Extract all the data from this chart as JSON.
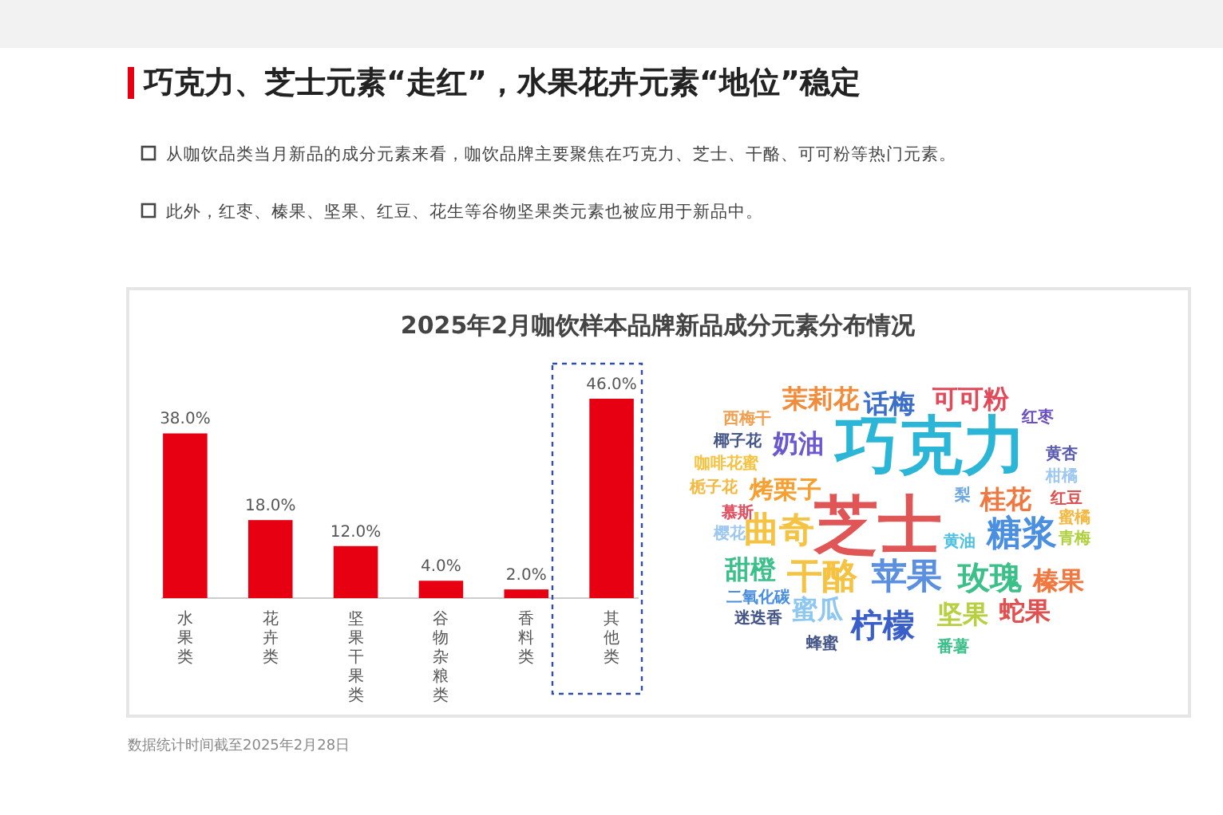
{
  "chart_data": [
    {
      "type": "bar",
      "title": "巧克力、芝士元素“走红”，水果花卉元素“地位”稳定",
      "subtitle": "2025年2月咖饮样本品牌新品成分元素分布情况",
      "categories": [
        "水果类",
        "花卉类",
        "坚果干果类",
        "谷物杂粮类",
        "香料类",
        "其他类"
      ],
      "values": [
        38,
        18,
        12,
        4,
        2,
        46
      ],
      "value_labels": [
        "38.0%",
        "18.0%",
        "12.0%",
        "4.0%",
        "2.0%",
        "46.0%"
      ],
      "color": "#e60012",
      "annotations": [
        "从咖饮品类当月新品的成分元素来看，咖饮品牌主要聚焦在巧克力、芝士、干酪、可可粉等热门元素。",
        "此外，红枣、榛果、坚果、红豆、花生等谷物坚果类元素也被应用于新品中。",
        "数据统计时间截至2025年2月28日"
      ]
    },
    {
      "type": "other",
      "annotations": [
        "巧克力",
        "芝士",
        "茉莉花",
        "话梅",
        "可可粉",
        "西梅干",
        "红枣",
        "椰子花",
        "奶油",
        "咖啡花蜜",
        "黄杏",
        "栀子花",
        "烤栗子",
        "桂花",
        "柑橘",
        "红豆",
        "梨",
        "慕斯",
        "曲奇",
        "黄油",
        "蜜橘",
        "樱花",
        "糖浆",
        "青梅",
        "甜橙",
        "干酪",
        "苹果",
        "玫瑰",
        "榛果",
        "二氧化碳",
        "迷迭香",
        "蜜瓜",
        "柠檬",
        "坚果",
        "蛇果",
        "蜂蜜",
        "番薯"
      ],
      "colors": [
        "#2bb5d6",
        "#e05656",
        "#f08c3c",
        "#3b6fc9",
        "#e04a5a",
        "#f0a050",
        "#6a4fc0",
        "#445588",
        "#6a5acd",
        "#f5c242",
        "#5a5ab0",
        "#f5b942",
        "#f5a030",
        "#f07840",
        "#9ec8f0",
        "#e05050",
        "#6fa8e0",
        "#e05060",
        "#f5c242",
        "#4ec0e0",
        "#f5b942",
        "#9ec8f0",
        "#4a8fe0",
        "#b0d040",
        "#3cc08a",
        "#f5c242",
        "#5b8fe0",
        "#3cc08a",
        "#f07840",
        "#4a8fe0",
        "#445588",
        "#8ec8f0",
        "#3b5fc9",
        "#b8d040",
        "#e05050",
        "#445588",
        "#3cc08a"
      ]
    }
  ]
}
